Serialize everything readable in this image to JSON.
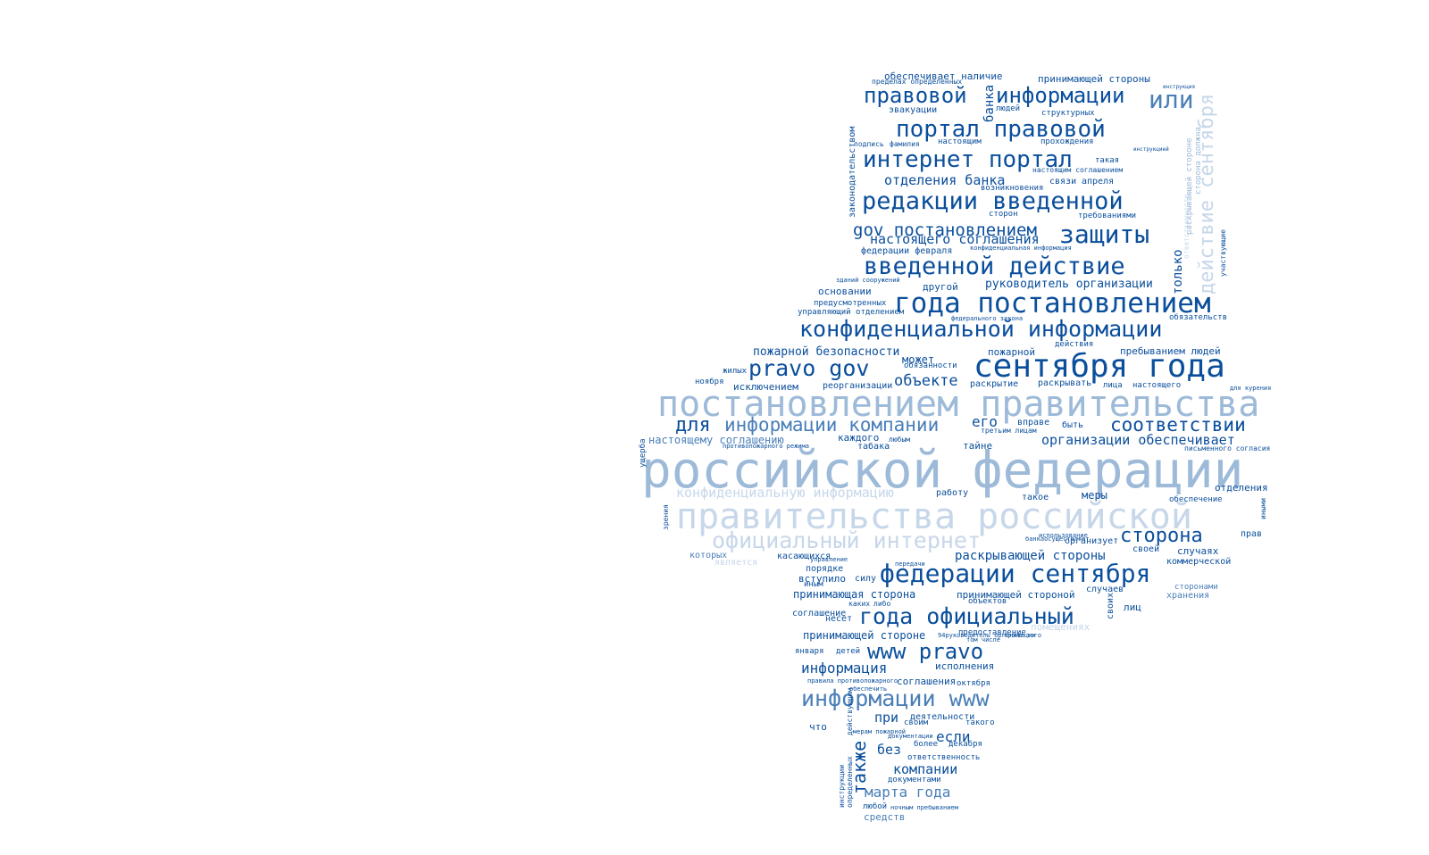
{
  "palette": {
    "dark": "#0b4f9c",
    "mid": "#4a7fb8",
    "light": "#9dbad9",
    "pale": "#c7d7ea"
  },
  "words": [
    {
      "text": "российской федерации",
      "tone": "light"
    },
    {
      "text": "постановлением правительства",
      "tone": "light"
    },
    {
      "text": "правительства российской",
      "tone": "pale"
    },
    {
      "text": "сентября года",
      "tone": "dark"
    },
    {
      "text": "года постановлением",
      "tone": "dark"
    },
    {
      "text": "конфиденциальной информации",
      "tone": "dark"
    },
    {
      "text": "федерации сентября",
      "tone": "dark"
    },
    {
      "text": "информации www",
      "tone": "mid"
    },
    {
      "text": "официальный интернет",
      "tone": "pale"
    },
    {
      "text": "введенной действие",
      "tone": "dark"
    },
    {
      "text": "редакции введенной",
      "tone": "dark"
    },
    {
      "text": "интернет портал",
      "tone": "dark"
    },
    {
      "text": "года официальный",
      "tone": "dark"
    },
    {
      "text": "www pravo",
      "tone": "dark"
    },
    {
      "text": "защиты",
      "tone": "dark"
    },
    {
      "text": "портал правовой",
      "tone": "dark"
    },
    {
      "text": "правовой",
      "tone": "dark"
    },
    {
      "text": "информации",
      "tone": "dark"
    },
    {
      "text": "или",
      "tone": "mid"
    },
    {
      "text": "pravo gov",
      "tone": "dark"
    },
    {
      "text": "соответствии",
      "tone": "dark"
    },
    {
      "text": "информации компании",
      "tone": "mid"
    },
    {
      "text": "сторона",
      "tone": "dark"
    },
    {
      "text": "gov постановлением",
      "tone": "dark"
    },
    {
      "text": "также",
      "tone": "dark"
    },
    {
      "text": "действие сентября",
      "tone": "pale"
    },
    {
      "text": "для",
      "tone": "dark"
    },
    {
      "text": "марта года",
      "tone": "mid"
    },
    {
      "text": "информация",
      "tone": "dark"
    },
    {
      "text": "организации обеспечивает",
      "tone": "dark"
    },
    {
      "text": "его",
      "tone": "dark"
    },
    {
      "text": "объекте",
      "tone": "dark"
    },
    {
      "text": "конфиденциальную информацию",
      "tone": "pale"
    },
    {
      "text": "настоящего соглашения",
      "tone": "dark"
    },
    {
      "text": "отделения банка",
      "tone": "dark"
    },
    {
      "text": "компании",
      "tone": "dark"
    },
    {
      "text": "раскрывающей стороны",
      "tone": "dark"
    },
    {
      "text": "если",
      "tone": "dark"
    },
    {
      "text": "только",
      "tone": "dark"
    },
    {
      "text": "руководитель организации",
      "tone": "dark"
    },
    {
      "text": "пожарной безопасности",
      "tone": "dark"
    },
    {
      "text": "без",
      "tone": "dark"
    },
    {
      "text": "при",
      "tone": "dark"
    },
    {
      "text": "банка",
      "tone": "dark"
    },
    {
      "text": "настоящему соглашению",
      "tone": "mid"
    },
    {
      "text": "принимающая сторона",
      "tone": "dark"
    },
    {
      "text": "принимающей стороне",
      "tone": "dark"
    },
    {
      "text": "законодательством",
      "tone": "dark"
    },
    {
      "text": "обеспечивает наличие",
      "tone": "dark"
    },
    {
      "text": "принимающей стороны",
      "tone": "dark"
    },
    {
      "text": "эвакуации",
      "tone": "dark"
    },
    {
      "text": "структурных",
      "tone": "dark"
    },
    {
      "text": "людей",
      "tone": "dark"
    },
    {
      "text": "настоящим",
      "tone": "dark"
    },
    {
      "text": "прохождения",
      "tone": "dark"
    },
    {
      "text": "подпись",
      "tone": "dark"
    },
    {
      "text": "фамилия",
      "tone": "dark"
    },
    {
      "text": "такая",
      "tone": "dark"
    },
    {
      "text": "связи",
      "tone": "dark"
    },
    {
      "text": "апреля",
      "tone": "dark"
    },
    {
      "text": "возникновения",
      "tone": "dark"
    },
    {
      "text": "настоящим соглашением",
      "tone": "dark"
    },
    {
      "text": "сторон",
      "tone": "dark"
    },
    {
      "text": "требованиями",
      "tone": "dark"
    },
    {
      "text": "федерации февраля",
      "tone": "dark"
    },
    {
      "text": "другой",
      "tone": "dark"
    },
    {
      "text": "основании",
      "tone": "dark"
    },
    {
      "text": "предусмотренных",
      "tone": "dark"
    },
    {
      "text": "управляющий отделением",
      "tone": "dark"
    },
    {
      "text": "обязательств",
      "tone": "dark"
    },
    {
      "text": "действия",
      "tone": "dark"
    },
    {
      "text": "пребыванием людей",
      "tone": "dark"
    },
    {
      "text": "пожарной",
      "tone": "dark"
    },
    {
      "text": "может",
      "tone": "dark"
    },
    {
      "text": "обязанности",
      "tone": "dark"
    },
    {
      "text": "жилых",
      "tone": "dark"
    },
    {
      "text": "ноября",
      "tone": "dark"
    },
    {
      "text": "исключением",
      "tone": "dark"
    },
    {
      "text": "реорганизации",
      "tone": "dark"
    },
    {
      "text": "раскрытие",
      "tone": "dark"
    },
    {
      "text": "раскрывать",
      "tone": "dark"
    },
    {
      "text": "лица",
      "tone": "dark"
    },
    {
      "text": "настоящего",
      "tone": "dark"
    },
    {
      "text": "вправе",
      "tone": "dark"
    },
    {
      "text": "быть",
      "tone": "dark"
    },
    {
      "text": "третьим лицам",
      "tone": "dark"
    },
    {
      "text": "каждого",
      "tone": "dark"
    },
    {
      "text": "любым",
      "tone": "dark"
    },
    {
      "text": "табака",
      "tone": "dark"
    },
    {
      "text": "тайне",
      "tone": "dark"
    },
    {
      "text": "работу",
      "tone": "dark"
    },
    {
      "text": "такое",
      "tone": "dark"
    },
    {
      "text": "меры",
      "tone": "dark"
    },
    {
      "text": "отделения",
      "tone": "dark"
    },
    {
      "text": "обеспечение",
      "tone": "dark"
    },
    {
      "text": "организует",
      "tone": "dark"
    },
    {
      "text": "своей",
      "tone": "dark"
    },
    {
      "text": "случаях",
      "tone": "dark"
    },
    {
      "text": "прав",
      "tone": "dark"
    },
    {
      "text": "коммерческой",
      "tone": "dark"
    },
    {
      "text": "которых",
      "tone": "mid"
    },
    {
      "text": "является",
      "tone": "pale"
    },
    {
      "text": "порядке",
      "tone": "dark"
    },
    {
      "text": "вступило",
      "tone": "dark"
    },
    {
      "text": "силу",
      "tone": "dark"
    },
    {
      "text": "иным",
      "tone": "dark"
    },
    {
      "text": "принимающей стороной",
      "tone": "dark"
    },
    {
      "text": "случаев",
      "tone": "dark"
    },
    {
      "text": "объектов",
      "tone": "dark"
    },
    {
      "text": "хранения",
      "tone": "mid"
    },
    {
      "text": "сторонами",
      "tone": "mid"
    },
    {
      "text": "своих",
      "tone": "dark"
    },
    {
      "text": "лиц",
      "tone": "dark"
    },
    {
      "text": "соглашение",
      "tone": "dark"
    },
    {
      "text": "несет",
      "tone": "dark"
    },
    {
      "text": "каких",
      "tone": "dark"
    },
    {
      "text": "либо",
      "tone": "dark"
    },
    {
      "text": "помещениях",
      "tone": "pale"
    },
    {
      "text": "предоставление",
      "tone": "dark"
    },
    {
      "text": "января",
      "tone": "dark"
    },
    {
      "text": "детей",
      "tone": "dark"
    },
    {
      "text": "исполнения",
      "tone": "dark"
    },
    {
      "text": "соглашения",
      "tone": "dark"
    },
    {
      "text": "октября",
      "tone": "dark"
    },
    {
      "text": "деятельности",
      "tone": "dark"
    },
    {
      "text": "своим",
      "tone": "dark"
    },
    {
      "text": "такого",
      "tone": "dark"
    },
    {
      "text": "что",
      "tone": "dark"
    },
    {
      "text": "более",
      "tone": "dark"
    },
    {
      "text": "декабря",
      "tone": "dark"
    },
    {
      "text": "ответственность",
      "tone": "dark"
    },
    {
      "text": "документами",
      "tone": "dark"
    },
    {
      "text": "любой",
      "tone": "dark"
    },
    {
      "text": "средств",
      "tone": "mid"
    },
    {
      "text": "ущерба",
      "tone": "dark"
    },
    {
      "text": "зрения",
      "tone": "dark"
    },
    {
      "text": "инструкции",
      "tone": "dark"
    },
    {
      "text": "определенных",
      "tone": "dark"
    },
    {
      "text": "действующим",
      "tone": "dark"
    },
    {
      "text": "раскрывающей стороне",
      "tone": "light"
    },
    {
      "text": "сторона должна",
      "tone": "light"
    },
    {
      "text": "иными",
      "tone": "dark"
    },
    {
      "text": "пределах определенных",
      "tone": "dark"
    },
    {
      "text": "зданий сооружений",
      "tone": "dark"
    },
    {
      "text": "федерального закона",
      "tone": "dark"
    },
    {
      "text": "для курения",
      "tone": "dark"
    },
    {
      "text": "письменного согласия",
      "tone": "dark"
    },
    {
      "text": "ночным пребыванием",
      "tone": "dark"
    },
    {
      "text": "документации",
      "tone": "dark"
    },
    {
      "text": "мерам пожарной",
      "tone": "dark"
    },
    {
      "text": "правила противопожарного",
      "tone": "dark"
    },
    {
      "text": "противопожарного режима",
      "tone": "dark"
    },
    {
      "text": "конфиденциальная информация",
      "tone": "dark"
    },
    {
      "text": "использование",
      "tone": "dark"
    },
    {
      "text": "банкаосуществляет",
      "tone": "dark"
    },
    {
      "text": "инструкция",
      "tone": "dark"
    },
    {
      "text": "инструкцией",
      "tone": "dark"
    },
    {
      "text": "участвующие",
      "tone": "dark"
    },
    {
      "text": "ответственности",
      "tone": "pale"
    },
    {
      "text": "обеспечить",
      "tone": "dark"
    },
    {
      "text": "94руководитель организации",
      "tone": "dark"
    },
    {
      "text": "кроме того",
      "tone": "dark"
    },
    {
      "text": "том числе",
      "tone": "dark"
    },
    {
      "text": "передачи",
      "tone": "dark"
    },
    {
      "text": "управление",
      "tone": "dark"
    },
    {
      "text": "касающихся",
      "tone": "dark"
    },
    {
      "text": "конфиденциальной информации",
      "tone": "pale"
    }
  ]
}
